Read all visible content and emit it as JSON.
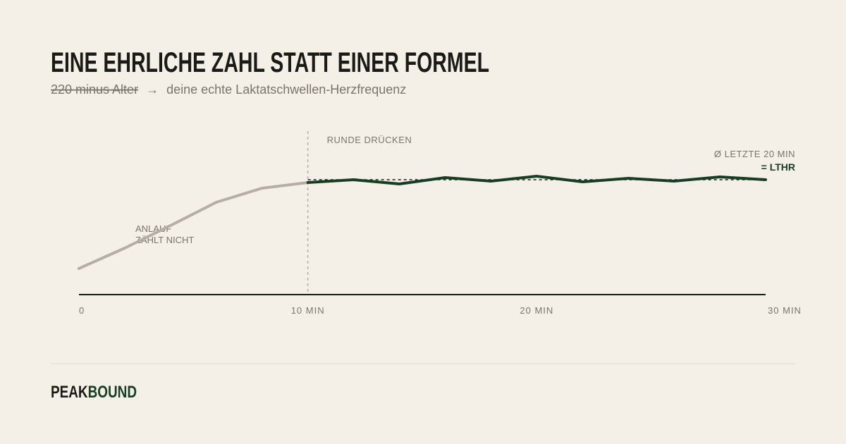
{
  "chart_data": {
    "type": "line",
    "title": "EINE EHRLICHE ZAHL STATT EINER FORMEL",
    "subtitle": {
      "old": "220 minus Alter",
      "arrow": "→",
      "new": "deine echte Laktatschwellen-Herzfrequenz"
    },
    "xlim": [
      0,
      30
    ],
    "xticks": [
      0,
      {
        "value": 10,
        "label": "10 MIN"
      },
      {
        "value": 20,
        "label": "20 MIN"
      },
      {
        "value": 30,
        "label": "30 MIN"
      }
    ],
    "ylim": [
      0,
      100
    ],
    "series": [
      {
        "color": "#b5aea5",
        "x": [
          0,
          2,
          4,
          6,
          8,
          10
        ],
        "values": [
          18.5,
          33,
          49,
          65.5,
          75.5,
          79.5
        ]
      },
      {
        "color": "#173d23",
        "x": [
          10,
          12,
          14,
          16,
          18,
          20,
          22,
          24,
          26,
          28,
          30
        ],
        "values": [
          79.5,
          81.5,
          78.5,
          83,
          80.5,
          84,
          80,
          82.5,
          80.5,
          83.5,
          81.5
        ]
      }
    ],
    "annotations": [
      {
        "text": "RUNDE DRÜCKEN"
      },
      {
        "lines": [
          "ANLAUF",
          "ZÄHLT NICHT"
        ]
      }
    ],
    "reference": {
      "value": 81.5,
      "label": "Ø LETZTE 20 MIN",
      "sublabel": "= LTHR",
      "color": "#173d23"
    },
    "brand": {
      "first": "PEAK",
      "second": "BOUND"
    }
  }
}
